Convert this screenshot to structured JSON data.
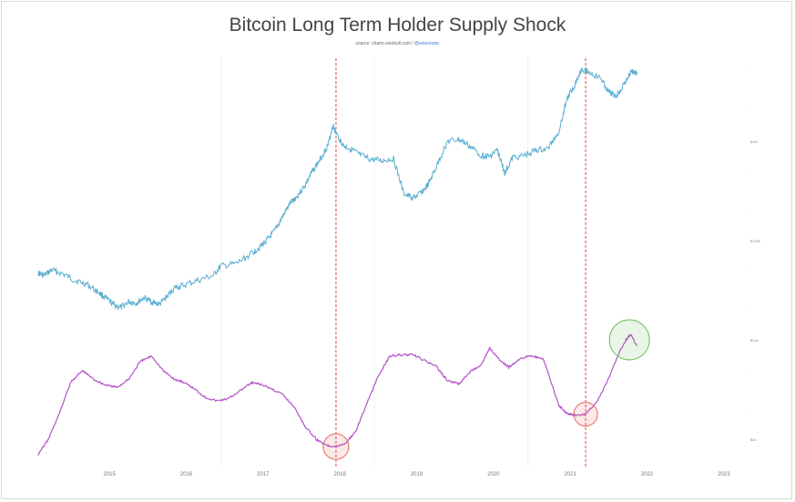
{
  "title": "Bitcoin Long Term Holder Supply Shock",
  "source": {
    "prefix": "source: charts.woobull.com / ",
    "handle": "@woonomic"
  },
  "chart_data": {
    "type": "line",
    "title": "Bitcoin Long Term Holder Supply Shock",
    "x_range": [
      2014.1,
      2023.3
    ],
    "x_ticks": [
      "2015",
      "2016",
      "2017",
      "2018",
      "2019",
      "2020",
      "2021",
      "2022",
      "2023"
    ],
    "right_axis_labels": [
      "$1M",
      "$100k",
      "$10k",
      "$1k"
    ],
    "series": [
      {
        "color": "#5aaed1",
        "role": "price (log scale)",
        "points": [
          [
            2014.12,
            310
          ],
          [
            2014.2,
            290
          ],
          [
            2014.3,
            330
          ],
          [
            2014.45,
            300
          ],
          [
            2014.6,
            260
          ],
          [
            2014.75,
            240
          ],
          [
            2014.9,
            200
          ],
          [
            2015.0,
            175
          ],
          [
            2015.1,
            150
          ],
          [
            2015.2,
            140
          ],
          [
            2015.3,
            160
          ],
          [
            2015.4,
            155
          ],
          [
            2015.5,
            175
          ],
          [
            2015.6,
            160
          ],
          [
            2015.7,
            150
          ],
          [
            2015.8,
            180
          ],
          [
            2015.9,
            220
          ],
          [
            2016.0,
            230
          ],
          [
            2016.2,
            260
          ],
          [
            2016.4,
            290
          ],
          [
            2016.5,
            360
          ],
          [
            2016.7,
            380
          ],
          [
            2016.9,
            480
          ],
          [
            2017.0,
            550
          ],
          [
            2017.1,
            650
          ],
          [
            2017.2,
            800
          ],
          [
            2017.3,
            1100
          ],
          [
            2017.4,
            1500
          ],
          [
            2017.5,
            1800
          ],
          [
            2017.6,
            2300
          ],
          [
            2017.7,
            3200
          ],
          [
            2017.8,
            4200
          ],
          [
            2017.9,
            5800
          ],
          [
            2017.96,
            9000
          ],
          [
            2018.0,
            7500
          ],
          [
            2018.1,
            5600
          ],
          [
            2018.2,
            5200
          ],
          [
            2018.3,
            4600
          ],
          [
            2018.45,
            4100
          ],
          [
            2018.6,
            4000
          ],
          [
            2018.75,
            4200
          ],
          [
            2018.88,
            1900
          ],
          [
            2019.0,
            1700
          ],
          [
            2019.1,
            1900
          ],
          [
            2019.2,
            2300
          ],
          [
            2019.3,
            3400
          ],
          [
            2019.45,
            6200
          ],
          [
            2019.6,
            6500
          ],
          [
            2019.75,
            5500
          ],
          [
            2019.9,
            4500
          ],
          [
            2020.0,
            4400
          ],
          [
            2020.1,
            5100
          ],
          [
            2020.2,
            3000
          ],
          [
            2020.3,
            4300
          ],
          [
            2020.45,
            4500
          ],
          [
            2020.6,
            5100
          ],
          [
            2020.75,
            5200
          ],
          [
            2020.9,
            7800
          ],
          [
            2021.0,
            16000
          ],
          [
            2021.1,
            22000
          ],
          [
            2021.2,
            33000
          ],
          [
            2021.3,
            30000
          ],
          [
            2021.45,
            26000
          ],
          [
            2021.55,
            19000
          ],
          [
            2021.65,
            17500
          ],
          [
            2021.75,
            23000
          ],
          [
            2021.85,
            31000
          ],
          [
            2021.92,
            29000
          ]
        ]
      },
      {
        "color": "#b452c9",
        "role": "long term holder supply shock",
        "points": [
          [
            2014.12,
            0.05
          ],
          [
            2014.25,
            0.18
          ],
          [
            2014.4,
            0.42
          ],
          [
            2014.55,
            0.7
          ],
          [
            2014.7,
            0.8
          ],
          [
            2014.85,
            0.72
          ],
          [
            2015.0,
            0.67
          ],
          [
            2015.15,
            0.65
          ],
          [
            2015.3,
            0.72
          ],
          [
            2015.45,
            0.88
          ],
          [
            2015.6,
            0.93
          ],
          [
            2015.75,
            0.8
          ],
          [
            2015.9,
            0.72
          ],
          [
            2016.0,
            0.7
          ],
          [
            2016.15,
            0.64
          ],
          [
            2016.3,
            0.56
          ],
          [
            2016.45,
            0.53
          ],
          [
            2016.6,
            0.55
          ],
          [
            2016.75,
            0.62
          ],
          [
            2016.9,
            0.69
          ],
          [
            2017.0,
            0.68
          ],
          [
            2017.15,
            0.64
          ],
          [
            2017.3,
            0.59
          ],
          [
            2017.45,
            0.48
          ],
          [
            2017.6,
            0.3
          ],
          [
            2017.75,
            0.18
          ],
          [
            2017.9,
            0.13
          ],
          [
            2018.0,
            0.12
          ],
          [
            2018.12,
            0.15
          ],
          [
            2018.25,
            0.25
          ],
          [
            2018.4,
            0.5
          ],
          [
            2018.55,
            0.75
          ],
          [
            2018.7,
            0.93
          ],
          [
            2018.85,
            0.94
          ],
          [
            2019.0,
            0.94
          ],
          [
            2019.15,
            0.89
          ],
          [
            2019.3,
            0.84
          ],
          [
            2019.45,
            0.71
          ],
          [
            2019.6,
            0.68
          ],
          [
            2019.75,
            0.79
          ],
          [
            2019.9,
            0.86
          ],
          [
            2020.0,
            1.0
          ],
          [
            2020.12,
            0.9
          ],
          [
            2020.25,
            0.83
          ],
          [
            2020.4,
            0.91
          ],
          [
            2020.55,
            0.93
          ],
          [
            2020.7,
            0.9
          ],
          [
            2020.8,
            0.7
          ],
          [
            2020.9,
            0.49
          ],
          [
            2021.0,
            0.42
          ],
          [
            2021.1,
            0.4
          ],
          [
            2021.25,
            0.41
          ],
          [
            2021.4,
            0.52
          ],
          [
            2021.55,
            0.73
          ],
          [
            2021.68,
            0.95
          ],
          [
            2021.78,
            1.08
          ],
          [
            2021.84,
            1.12
          ],
          [
            2021.92,
            1.02
          ]
        ]
      }
    ],
    "markers": {
      "vertical_lines": [
        2018.0,
        2021.25
      ],
      "circles": [
        {
          "x": 2018.0,
          "series": 1,
          "color": "#e46a5f"
        },
        {
          "x": 2021.25,
          "series": 1,
          "color": "#e46a5f"
        },
        {
          "x": 2021.82,
          "series": 1,
          "color": "#6bbf59"
        }
      ]
    },
    "grid": "faint vertical lines at every other year",
    "legend": "none"
  }
}
